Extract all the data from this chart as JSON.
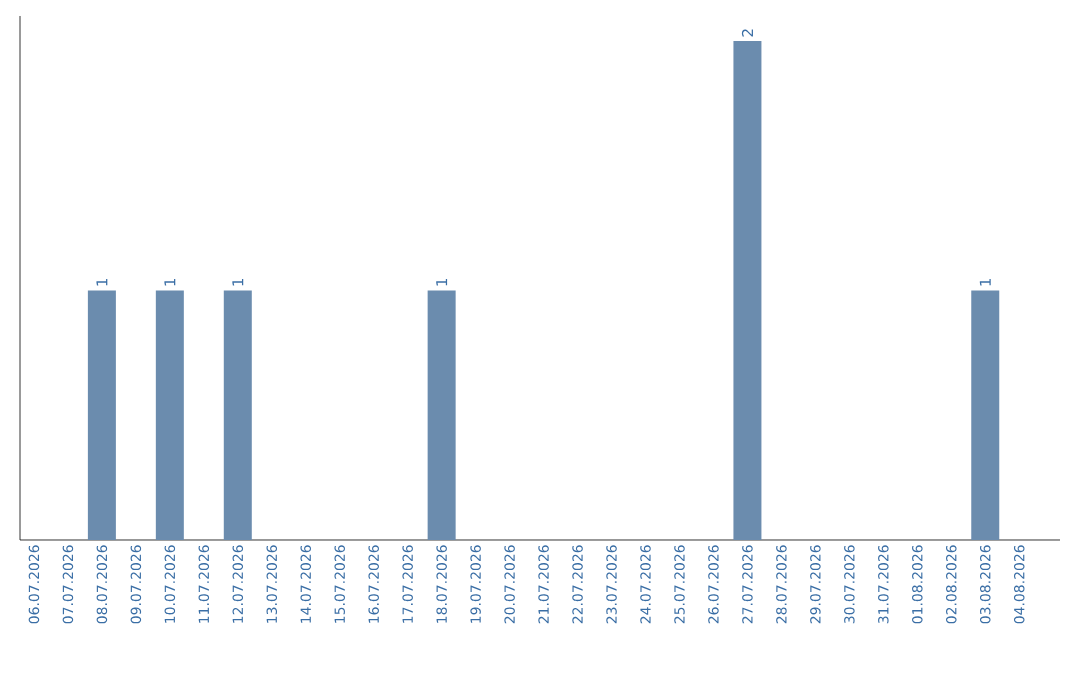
{
  "chart_data": {
    "type": "bar",
    "categories": [
      "06.07.2026",
      "07.07.2026",
      "08.07.2026",
      "09.07.2026",
      "10.07.2026",
      "11.07.2026",
      "12.07.2026",
      "13.07.2026",
      "14.07.2026",
      "15.07.2026",
      "16.07.2026",
      "17.07.2026",
      "18.07.2026",
      "19.07.2026",
      "20.07.2026",
      "21.07.2026",
      "22.07.2026",
      "23.07.2026",
      "24.07.2026",
      "25.07.2026",
      "26.07.2026",
      "27.07.2026",
      "28.07.2026",
      "29.07.2026",
      "30.07.2026",
      "31.07.2026",
      "01.08.2026",
      "02.08.2026",
      "03.08.2026",
      "04.08.2026"
    ],
    "values": [
      0,
      0,
      1,
      0,
      1,
      0,
      1,
      0,
      0,
      0,
      0,
      0,
      1,
      0,
      0,
      0,
      0,
      0,
      0,
      0,
      0,
      2,
      0,
      0,
      0,
      0,
      0,
      0,
      1,
      0
    ],
    "value_labels": [
      null,
      null,
      "1",
      null,
      "1",
      null,
      "1",
      null,
      null,
      null,
      null,
      null,
      "1",
      null,
      null,
      null,
      null,
      null,
      null,
      null,
      null,
      "2",
      null,
      null,
      null,
      null,
      null,
      null,
      "1",
      null
    ],
    "color": "#6b8cae"
  }
}
